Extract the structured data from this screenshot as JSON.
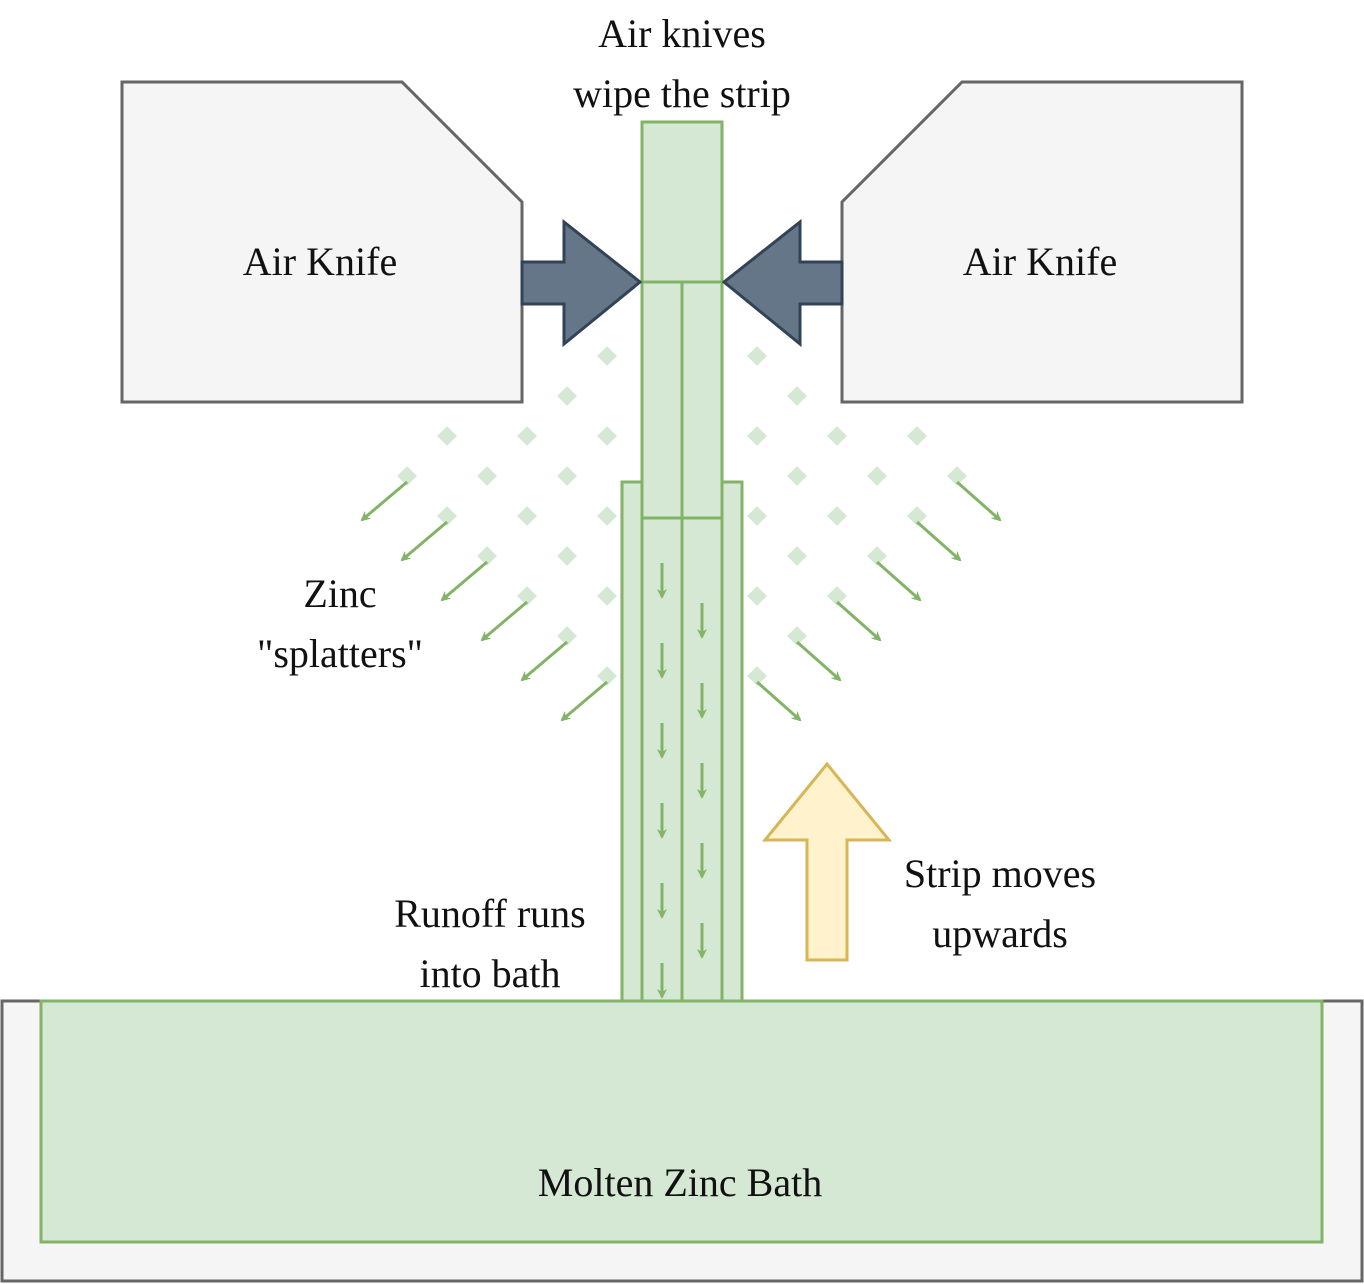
{
  "labels": {
    "air_knife_left": "Air Knife",
    "air_knife_right": "Air Knife",
    "title_line1": "Air knives",
    "title_line2": "wipe the strip",
    "zinc_line1": "Zinc",
    "zinc_line2": "\"splatters\"",
    "runoff_line1": "Runoff runs",
    "runoff_line2": "into bath",
    "strip_line1": "Strip moves",
    "strip_line2": "upwards",
    "bath": "Molten Zinc Bath"
  },
  "colors": {
    "knife_fill": "#f5f5f5",
    "knife_stroke": "#666666",
    "nozzle_fill": "#647687",
    "nozzle_stroke": "#314354",
    "zinc_fill": "#d5e8d4",
    "zinc_stroke": "#82b366",
    "splatter_dot": "#d5e8d4",
    "arrow_green": "#82b366",
    "up_arrow_fill": "#fff2cc",
    "up_arrow_stroke": "#d6b656",
    "tank_fill": "#f5f5f5",
    "tank_stroke": "#666666"
  }
}
